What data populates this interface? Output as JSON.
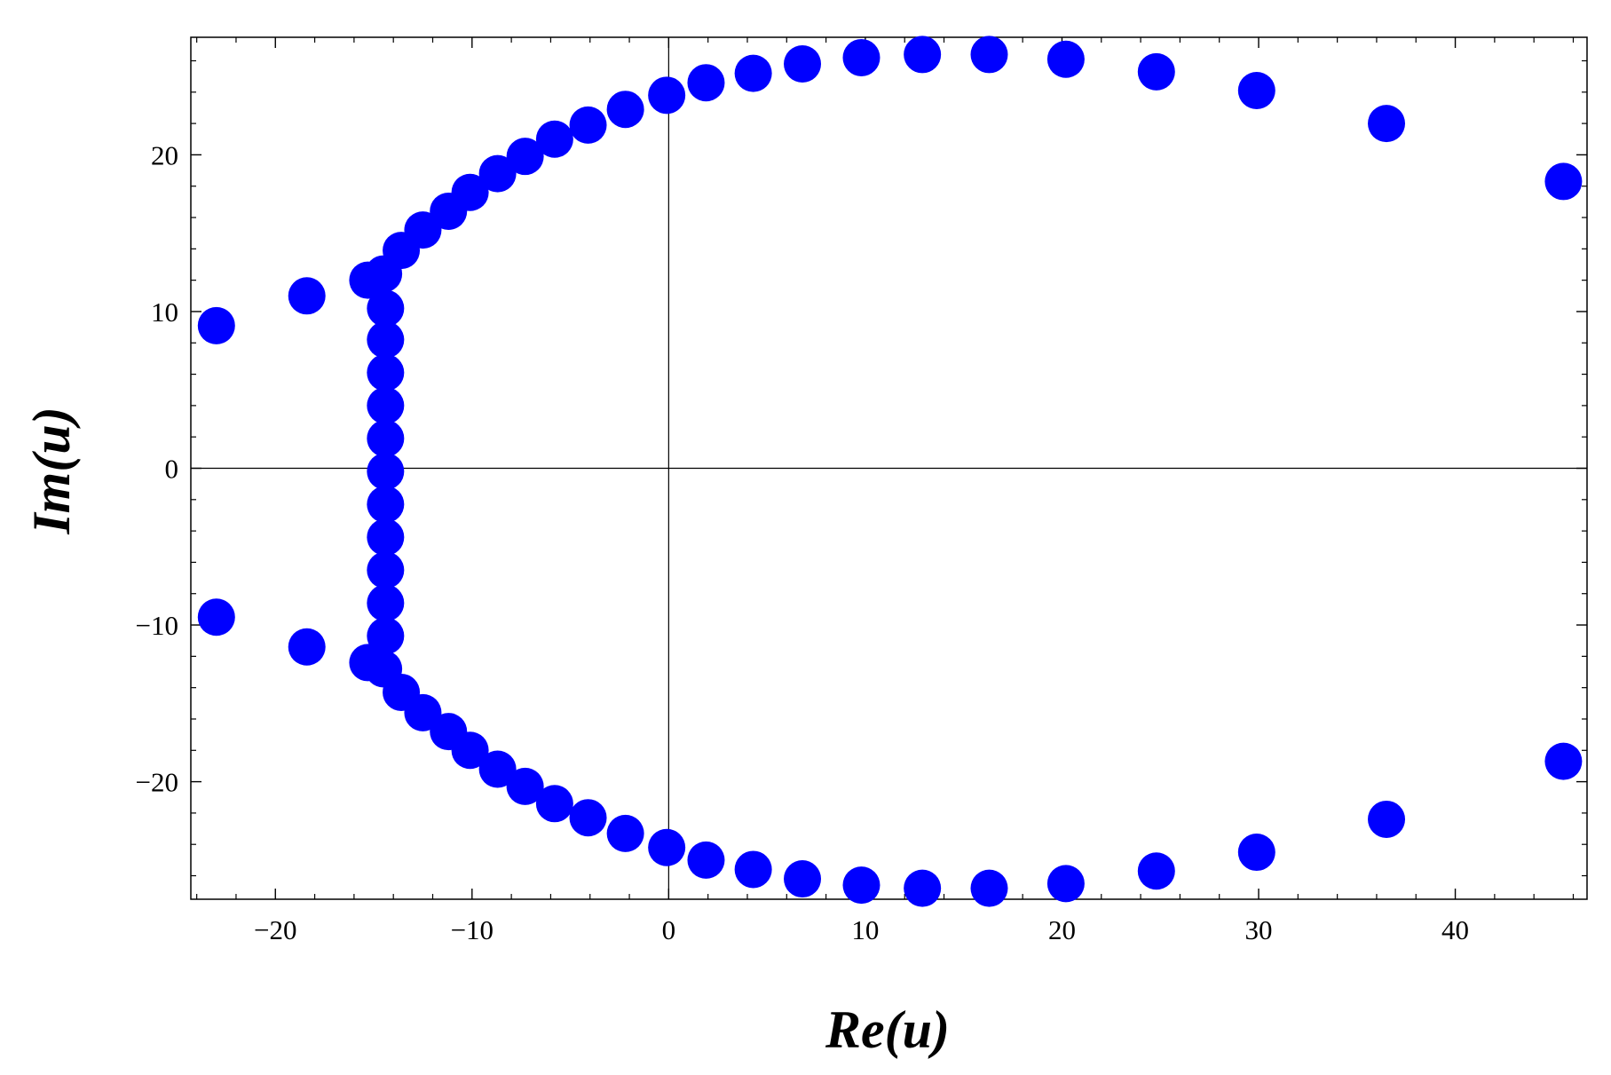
{
  "chart_data": {
    "type": "scatter",
    "title": "",
    "xlabel": "Re(u)",
    "ylabel": "Im(u)",
    "xlim": [
      -24.3,
      46.7
    ],
    "ylim": [
      -27.5,
      27.5
    ],
    "xticks": [
      -20,
      -10,
      0,
      10,
      20,
      30,
      40
    ],
    "xtick_labels": [
      "−20",
      "−10",
      "0",
      "10",
      "20",
      "30",
      "40"
    ],
    "yticks": [
      -20,
      -10,
      0,
      10,
      20
    ],
    "ytick_labels": [
      "−20",
      "−10",
      "0",
      "10",
      "20"
    ],
    "x_minor_step": 2,
    "y_minor_step": 2,
    "zero_lines": true,
    "grid": false,
    "legend": "none",
    "marker_color": "#0000ff",
    "series": [
      {
        "points": [
          [
            -23.0,
            9.1
          ],
          [
            -18.4,
            11.0
          ],
          [
            -15.3,
            12.0
          ],
          [
            -14.5,
            12.4
          ],
          [
            -13.6,
            13.9
          ],
          [
            -12.5,
            15.2
          ],
          [
            -11.2,
            16.4
          ],
          [
            -10.1,
            17.6
          ],
          [
            -8.7,
            18.8
          ],
          [
            -7.3,
            19.9
          ],
          [
            -5.8,
            21.0
          ],
          [
            -4.1,
            21.9
          ],
          [
            -2.2,
            22.9
          ],
          [
            -0.1,
            23.8
          ],
          [
            1.9,
            24.6
          ],
          [
            4.3,
            25.2
          ],
          [
            6.8,
            25.8
          ],
          [
            9.8,
            26.2
          ],
          [
            12.9,
            26.4
          ],
          [
            16.3,
            26.4
          ],
          [
            20.2,
            26.1
          ],
          [
            24.8,
            25.3
          ],
          [
            29.9,
            24.1
          ],
          [
            36.5,
            22.0
          ],
          [
            45.5,
            18.3
          ],
          [
            -14.4,
            10.2
          ],
          [
            -14.4,
            8.2
          ],
          [
            -14.4,
            6.1
          ],
          [
            -14.4,
            4.0
          ],
          [
            -14.4,
            1.9
          ],
          [
            -14.4,
            -0.2
          ],
          [
            -14.4,
            -2.3
          ],
          [
            -14.4,
            -4.4
          ],
          [
            -14.4,
            -6.5
          ],
          [
            -14.4,
            -8.6
          ],
          [
            -14.4,
            -10.7
          ],
          [
            -23.0,
            -9.5
          ],
          [
            -18.4,
            -11.4
          ],
          [
            -15.3,
            -12.4
          ],
          [
            -14.5,
            -12.8
          ],
          [
            -13.6,
            -14.3
          ],
          [
            -12.5,
            -15.6
          ],
          [
            -11.2,
            -16.8
          ],
          [
            -10.1,
            -18.0
          ],
          [
            -8.7,
            -19.2
          ],
          [
            -7.3,
            -20.3
          ],
          [
            -5.8,
            -21.4
          ],
          [
            -4.1,
            -22.3
          ],
          [
            -2.2,
            -23.3
          ],
          [
            -0.1,
            -24.2
          ],
          [
            1.9,
            -25.0
          ],
          [
            4.3,
            -25.6
          ],
          [
            6.8,
            -26.2
          ],
          [
            9.8,
            -26.6
          ],
          [
            12.9,
            -26.8
          ],
          [
            16.3,
            -26.8
          ],
          [
            20.2,
            -26.5
          ],
          [
            24.8,
            -25.7
          ],
          [
            29.9,
            -24.5
          ],
          [
            36.5,
            -22.4
          ],
          [
            45.5,
            -18.7
          ]
        ]
      }
    ]
  }
}
